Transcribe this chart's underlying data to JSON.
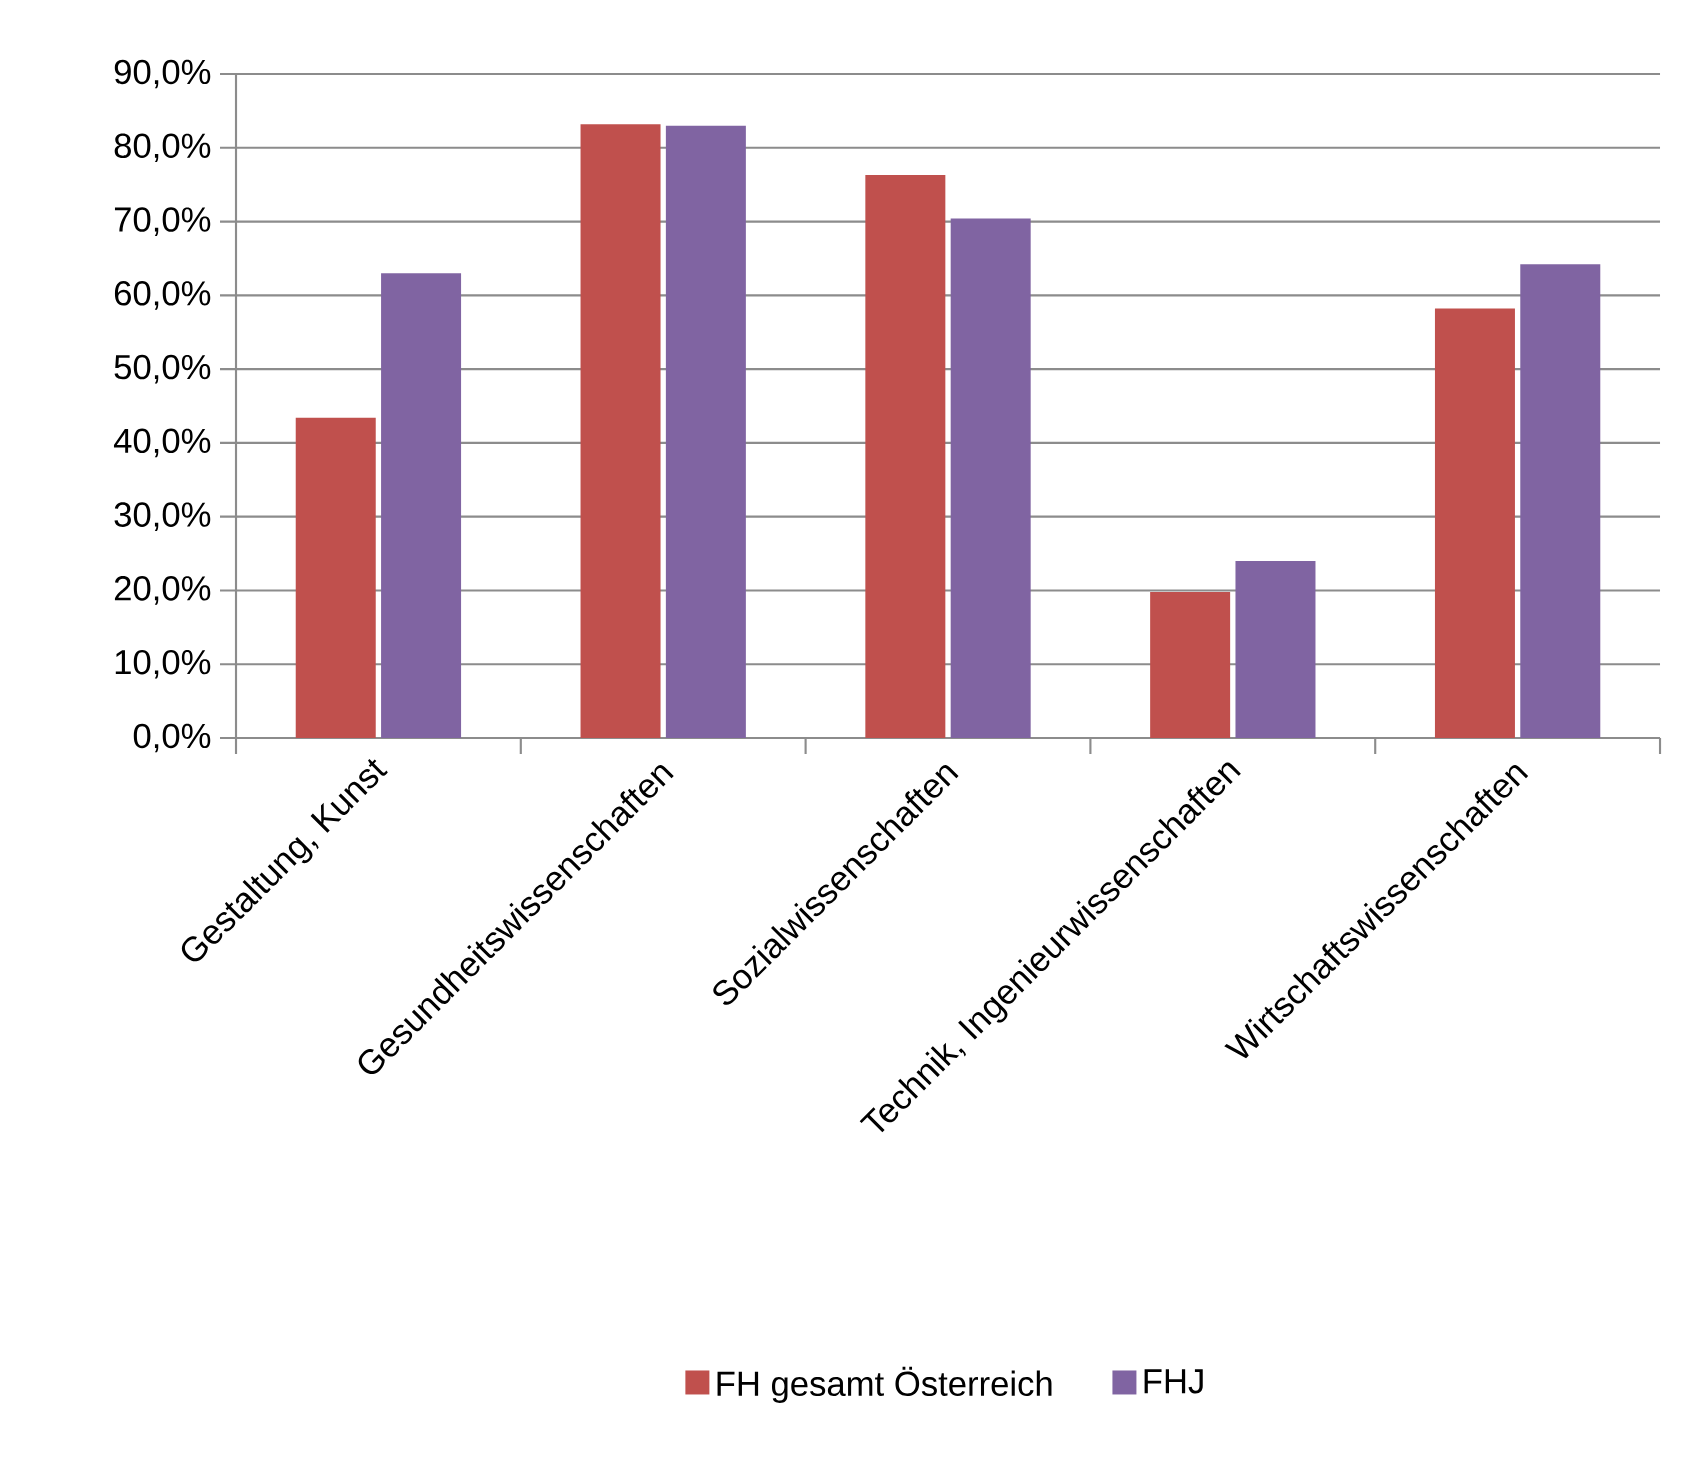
{
  "chart_data": {
    "type": "bar",
    "categories": [
      "Gestaltung, Kunst",
      "Gesundheitswissenschaften",
      "Sozialwissenschaften",
      "Technik, Ingenieurwissenschaften",
      "Wirtschaftswissenschaften"
    ],
    "series": [
      {
        "name": "FH gesamt Österreich",
        "color": "#c0504d",
        "values": [
          43.4,
          83.2,
          76.3,
          19.8,
          58.2
        ]
      },
      {
        "name": "FHJ",
        "color": "#8064a2",
        "values": [
          63.0,
          83.0,
          70.4,
          24.0,
          64.2
        ]
      }
    ],
    "ylim": [
      0,
      90
    ],
    "yticks": [
      {
        "value": 0,
        "label": "0,0%"
      },
      {
        "value": 10,
        "label": "10,0%"
      },
      {
        "value": 20,
        "label": "20,0%"
      },
      {
        "value": 30,
        "label": "30,0%"
      },
      {
        "value": 40,
        "label": "40,0%"
      },
      {
        "value": 50,
        "label": "50,0%"
      },
      {
        "value": 60,
        "label": "60,0%"
      },
      {
        "value": 70,
        "label": "70,0%"
      },
      {
        "value": 80,
        "label": "80,0%"
      },
      {
        "value": 90,
        "label": "90,0%"
      }
    ],
    "grid": "y",
    "legend": "bottom"
  }
}
